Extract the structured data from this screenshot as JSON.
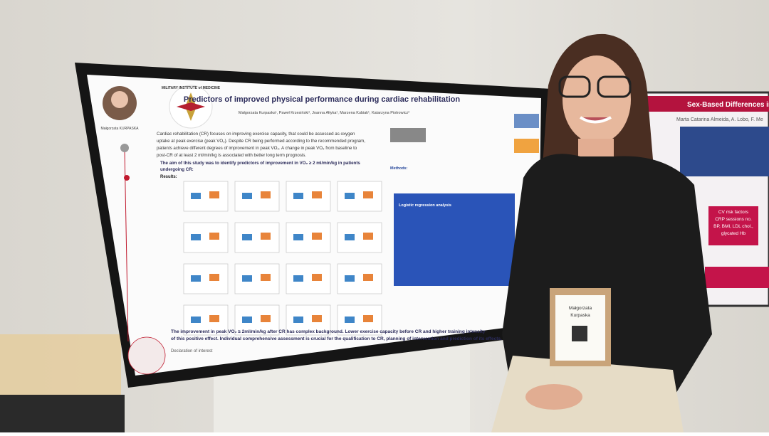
{
  "poster": {
    "institute": "MILITARY INSTITUTE of MEDICINE",
    "title": "Predictors of improved physical performance during cardiac rehabilitation",
    "authors": "Małgorzata Kurpaska¹, Paweł Krzesiński¹, Joanna Ałtyka¹, Marzena Kubiak¹, Katarzyna Piotrowicz²",
    "presenter": "Małgorzata KURPASKA",
    "intro": [
      "Cardiac rehabilitation (CR) focuses on improving exercise capacity, that could be assessed as oxygen",
      "uptake at peak exercise (peak VO₂). Despite CR being performed according to the recommended program,",
      "patients achieve different degrees of improvement in peak VO₂. A change in peak VO₂ from baseline to",
      "post-CR of at least 2 ml/min/kg is associated with better long term prognosis."
    ],
    "aim": [
      "The aim of this study was to identify predictors of improvement in VO₂ ≥ 2 ml/min/kg in patients",
      "undergoing CR:"
    ],
    "results": "Results:",
    "methods": "Methods:",
    "table_title": "Logistic regression analysis",
    "conclusion": [
      "The improvement in peak VO₂ ≥ 2ml/min/kg after CR has complex background. Lower exercise capacity before CR and higher training intensity",
      "of this positive effect. Individual comprehensive assessment is crucial for the qualification to CR, planning of intervention and prediction of its effects."
    ],
    "declaration": "Declaration of interest"
  },
  "side_poster": {
    "title": "Sex-Based Differences in F",
    "authors": "Marta Catarina Almeida, A. Lobo, F. Me",
    "box": [
      "CV risk factors",
      "CRP sessions no.",
      "BP, BMI, LDL chol.,",
      "glycated Hb"
    ]
  },
  "badge": {
    "name": [
      "Małgorzata",
      "Kurpaska"
    ]
  }
}
